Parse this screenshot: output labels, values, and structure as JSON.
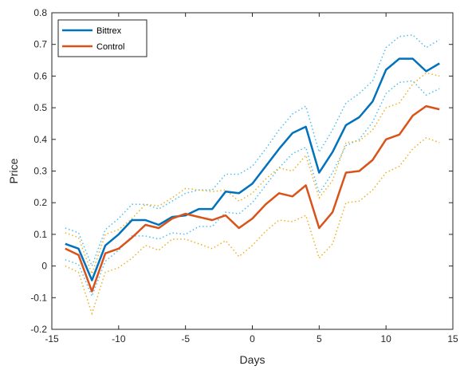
{
  "chart_data": {
    "type": "line",
    "title": "",
    "xlabel": "Days",
    "ylabel": "Price",
    "xlim": [
      -15,
      15
    ],
    "ylim": [
      -0.2,
      0.8
    ],
    "x_ticks": [
      -15,
      -10,
      -5,
      0,
      5,
      10,
      15
    ],
    "x_tick_labels": [
      "-15",
      "-10",
      "-5",
      "0",
      "5",
      "10",
      "15"
    ],
    "y_ticks": [
      -0.2,
      -0.1,
      0,
      0.1,
      0.2,
      0.3,
      0.4,
      0.5,
      0.6,
      0.7,
      0.8
    ],
    "y_tick_labels": [
      "-0.2",
      "-0.1",
      "0",
      "0.1",
      "0.2",
      "0.3",
      "0.4",
      "0.5",
      "0.6",
      "0.7",
      "0.8"
    ],
    "grid": false,
    "legend_position": "top-left",
    "x": [
      -14,
      -13,
      -12,
      -11,
      -10,
      -9,
      -8,
      -7,
      -6,
      -5,
      -4,
      -3,
      -2,
      -1,
      0,
      1,
      2,
      3,
      4,
      5,
      6,
      7,
      8,
      9,
      10,
      11,
      12,
      13,
      14
    ],
    "series": [
      {
        "name": "Bittrex",
        "color": "#0072BD",
        "style": "solid",
        "values": [
          0.07,
          0.055,
          -0.045,
          0.065,
          0.1,
          0.145,
          0.145,
          0.13,
          0.155,
          0.16,
          0.18,
          0.18,
          0.235,
          0.23,
          0.26,
          0.315,
          0.37,
          0.42,
          0.44,
          0.295,
          0.36,
          0.445,
          0.47,
          0.52,
          0.62,
          0.655,
          0.655,
          0.615,
          0.64
        ],
        "upper": [
          0.12,
          0.105,
          0.0,
          0.115,
          0.15,
          0.195,
          0.195,
          0.18,
          0.205,
          0.23,
          0.24,
          0.24,
          0.29,
          0.29,
          0.315,
          0.37,
          0.43,
          0.48,
          0.505,
          0.36,
          0.43,
          0.515,
          0.545,
          0.585,
          0.69,
          0.725,
          0.73,
          0.69,
          0.715
        ],
        "lower": [
          0.02,
          0.005,
          -0.095,
          0.015,
          0.05,
          0.095,
          0.095,
          0.085,
          0.105,
          0.1,
          0.125,
          0.125,
          0.17,
          0.165,
          0.2,
          0.255,
          0.31,
          0.355,
          0.375,
          0.23,
          0.295,
          0.38,
          0.4,
          0.455,
          0.545,
          0.58,
          0.585,
          0.54,
          0.56
        ],
        "bound_color": "#4DBEEE"
      },
      {
        "name": "Control",
        "color": "#D95319",
        "style": "solid",
        "values": [
          0.055,
          0.035,
          -0.08,
          0.04,
          0.055,
          0.09,
          0.13,
          0.12,
          0.15,
          0.165,
          0.155,
          0.145,
          0.16,
          0.12,
          0.15,
          0.195,
          0.23,
          0.22,
          0.255,
          0.12,
          0.17,
          0.295,
          0.3,
          0.335,
          0.4,
          0.415,
          0.475,
          0.505,
          0.495
        ],
        "upper": [
          0.105,
          0.09,
          -0.025,
          0.1,
          0.115,
          0.15,
          0.195,
          0.19,
          0.215,
          0.245,
          0.24,
          0.235,
          0.24,
          0.205,
          0.23,
          0.275,
          0.31,
          0.3,
          0.35,
          0.215,
          0.27,
          0.39,
          0.395,
          0.43,
          0.5,
          0.515,
          0.575,
          0.61,
          0.6
        ],
        "lower": [
          0.0,
          -0.02,
          -0.15,
          -0.02,
          -0.005,
          0.025,
          0.065,
          0.05,
          0.085,
          0.085,
          0.07,
          0.055,
          0.08,
          0.03,
          0.065,
          0.11,
          0.145,
          0.14,
          0.16,
          0.025,
          0.07,
          0.2,
          0.205,
          0.24,
          0.295,
          0.315,
          0.37,
          0.405,
          0.39
        ],
        "bound_color": "#EDB120"
      }
    ]
  }
}
